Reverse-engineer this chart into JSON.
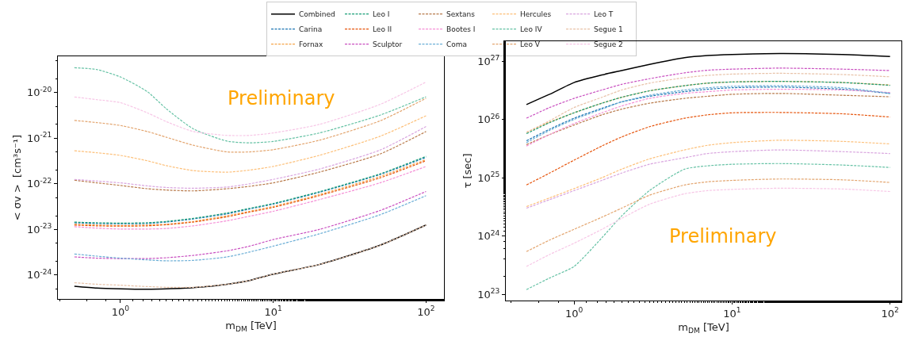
{
  "chart_data": [
    {
      "type": "line",
      "xlabel": "m$_{DM}$ [TeV]",
      "ylabel": "< σv >  [cm³s⁻¹]",
      "annotations": [
        "Preliminary"
      ],
      "log": "xy",
      "grid": false,
      "legend": "top",
      "line_style": "dashed",
      "marker": "none",
      "xlim": [
        0.39,
        131
      ],
      "ylim": [
        3e-25,
        6.2e-20
      ],
      "xticks": [
        {
          "value": 1,
          "label": "10$^{0}$"
        },
        {
          "value": 10,
          "label": "10$^{1}$"
        },
        {
          "value": 100,
          "label": "10$^{2}$"
        }
      ],
      "yticks": [
        {
          "value": 1e-24,
          "label": "10$^{-24}$"
        },
        {
          "value": 1e-23,
          "label": "10$^{-23}$"
        },
        {
          "value": 1e-22,
          "label": "10$^{-22}$"
        },
        {
          "value": 1e-21,
          "label": "10$^{-21}$"
        },
        {
          "value": 1e-20,
          "label": "10$^{-20}$"
        }
      ],
      "x": [
        0.5,
        0.7,
        1,
        1.5,
        2,
        3,
        5,
        7,
        10,
        20,
        50,
        100
      ],
      "series": [
        {
          "name": "Combined",
          "color": "#000000",
          "line_style": "solid",
          "values": [
            5.7e-25,
            5.2e-25,
            5e-25,
            4.9e-25,
            5e-25,
            5.3e-25,
            6.3e-25,
            7.6e-25,
            1.05e-24,
            1.7e-24,
            4.5e-24,
            1.25e-23
          ]
        },
        {
          "name": "Carina",
          "color": "#1f77b4",
          "values": [
            1.4e-23,
            1.35e-23,
            1.33e-23,
            1.35e-23,
            1.45e-23,
            1.7e-23,
            2.2e-23,
            2.8e-23,
            3.6e-23,
            6.5e-23,
            1.6e-22,
            3.8e-22
          ]
        },
        {
          "name": "Fornax",
          "color": "#f5a54a",
          "values": [
            1.3e-23,
            1.25e-23,
            1.22e-23,
            1.25e-23,
            1.3e-23,
            1.5e-23,
            2e-23,
            2.5e-23,
            3.2e-23,
            5.8e-23,
            1.45e-22,
            3.4e-22
          ]
        },
        {
          "name": "Leo I",
          "color": "#1a9e77",
          "values": [
            1.45e-23,
            1.4e-23,
            1.38e-23,
            1.4e-23,
            1.5e-23,
            1.75e-23,
            2.3e-23,
            2.9e-23,
            3.7e-23,
            6.7e-23,
            1.65e-22,
            4e-22
          ]
        },
        {
          "name": "Leo II",
          "color": "#e6550d",
          "values": [
            1.25e-23,
            1.2e-23,
            1.18e-23,
            1.2e-23,
            1.27e-23,
            1.45e-23,
            1.9e-23,
            2.4e-23,
            3.05e-23,
            5.5e-23,
            1.35e-22,
            3.2e-22
          ]
        },
        {
          "name": "Sculptor",
          "color": "#c94fc0",
          "values": [
            2.5e-24,
            2.35e-24,
            2.3e-24,
            2.3e-24,
            2.4e-24,
            2.7e-24,
            3.4e-24,
            4.3e-24,
            6e-24,
            1e-23,
            2.6e-23,
            6.8e-23
          ]
        },
        {
          "name": "Sextans",
          "color": "#b87a4b",
          "values": [
            1.2e-22,
            1.05e-22,
            9.2e-23,
            7.8e-23,
            7.3e-23,
            7e-23,
            7.8e-23,
            8.8e-23,
            1.05e-22,
            1.8e-22,
            4.5e-22,
            1.4e-21
          ]
        },
        {
          "name": "Bootes I",
          "color": "#f58fd6",
          "values": [
            1.15e-23,
            1.07e-23,
            1.02e-23,
            1.02e-23,
            1.05e-23,
            1.2e-23,
            1.55e-23,
            1.95e-23,
            2.5e-23,
            4.5e-23,
            1.05e-22,
            2.4e-22
          ]
        },
        {
          "name": "Coma",
          "color": "#6baed6",
          "values": [
            2.9e-24,
            2.6e-24,
            2.35e-24,
            2.15e-24,
            2.05e-24,
            2.1e-24,
            2.5e-24,
            3.2e-24,
            4.3e-24,
            8e-24,
            2.1e-23,
            5.5e-23
          ]
        },
        {
          "name": "Hercules",
          "color": "#fdc07a",
          "values": [
            5.3e-22,
            4.8e-22,
            4.2e-22,
            3.2e-22,
            2.5e-22,
            1.95e-22,
            1.8e-22,
            2e-22,
            2.4e-22,
            4.2e-22,
            1.1e-21,
            3.1e-21
          ]
        },
        {
          "name": "Leo IV",
          "color": "#66c2a5",
          "values": [
            3.5e-20,
            3.2e-20,
            2.2e-20,
            1.05e-20,
            4.4e-21,
            1.6e-21,
            8.6e-22,
            7.9e-22,
            8.5e-22,
            1.3e-21,
            3.2e-21,
            8.1e-21
          ]
        },
        {
          "name": "Leo V",
          "color": "#e3a56f",
          "values": [
            2.45e-21,
            2.2e-21,
            1.9e-21,
            1.4e-21,
            1.05e-21,
            7e-22,
            5e-22,
            5e-22,
            5.6e-22,
            9e-22,
            2.4e-21,
            7.5e-21
          ]
        },
        {
          "name": "Leo T",
          "color": "#d9a5df",
          "values": [
            1.25e-22,
            1.15e-22,
            1.05e-22,
            9e-23,
            8.3e-23,
            8e-23,
            8.5e-23,
            1e-22,
            1.25e-22,
            2.1e-22,
            5.5e-22,
            1.8e-21
          ]
        },
        {
          "name": "Segue 1",
          "color": "#e8c2a8",
          "values": [
            6.8e-25,
            6.3e-25,
            6e-25,
            5.6e-25,
            5.4e-25,
            5.4e-25,
            6.3e-25,
            7.6e-25,
            1.05e-24,
            1.7e-24,
            4.5e-24,
            1.25e-23
          ]
        },
        {
          "name": "Segue 2",
          "color": "#f7c6e6",
          "values": [
            8e-21,
            7e-21,
            6e-21,
            3.6e-21,
            2.3e-21,
            1.4e-21,
            1.15e-21,
            1.15e-21,
            1.3e-21,
            2e-21,
            5.5e-21,
            1.7e-20
          ]
        }
      ]
    },
    {
      "type": "line",
      "xlabel": "m$_{DM}$ [TeV]",
      "ylabel": "τ [sec]",
      "annotations": [
        "Preliminary"
      ],
      "log": "xy",
      "grid": false,
      "line_style": "dashed",
      "marker": "none",
      "xlim": [
        0.37,
        118
      ],
      "ylim": [
        7.8e+22,
        2.2e+27
      ],
      "xticks": [
        {
          "value": 1,
          "label": "10$^{0}$"
        },
        {
          "value": 10,
          "label": "10$^{1}$"
        },
        {
          "value": 100,
          "label": "10$^{2}$"
        }
      ],
      "yticks": [
        {
          "value": 1e+23,
          "label": "10$^{23}$"
        },
        {
          "value": 1e+24,
          "label": "10$^{24}$"
        },
        {
          "value": 1e+25,
          "label": "10$^{25}$"
        },
        {
          "value": 1e+26,
          "label": "10$^{26}$"
        },
        {
          "value": 1e+27,
          "label": "10$^{27}$"
        }
      ],
      "x": [
        0.5,
        0.7,
        1,
        1.5,
        2,
        3,
        5,
        7,
        10,
        20,
        50,
        100
      ],
      "series": [
        {
          "color": "#000000",
          "line_style": "solid",
          "values": [
            1.8e+26,
            2.7e+26,
            4.3e+26,
            5.8e+26,
            6.9e+26,
            8.8e+26,
            1.15e+27,
            1.25e+27,
            1.3e+27,
            1.35e+27,
            1.3e+27,
            1.2e+27
          ]
        },
        {
          "color": "#1f77b4",
          "values": [
            4.3e+25,
            6.8e+25,
            1.05e+26,
            1.55e+26,
            2e+26,
            2.5e+26,
            3e+26,
            3.3e+26,
            3.5e+26,
            3.6e+26,
            3.3e+26,
            2.8e+26
          ]
        },
        {
          "color": "#f5a54a",
          "values": [
            6e+25,
            9e+25,
            1.3e+26,
            1.9e+26,
            2.4e+26,
            3.1e+26,
            3.8e+26,
            4.2e+26,
            4.4e+26,
            4.5e+26,
            4.3e+26,
            3.9e+26
          ]
        },
        {
          "color": "#1a9e77",
          "values": [
            5.7e+25,
            8.8e+25,
            1.3e+26,
            1.9e+26,
            2.4e+26,
            3.1e+26,
            3.8e+26,
            4.2e+26,
            4.4e+26,
            4.5e+26,
            4.3e+26,
            3.85e+26
          ]
        },
        {
          "color": "#e6550d",
          "values": [
            7.5e+24,
            1.2e+25,
            2e+25,
            3.5e+25,
            5e+25,
            7.5e+25,
            1.05e+26,
            1.2e+26,
            1.3e+26,
            1.32e+26,
            1.25e+26,
            1.1e+26
          ]
        },
        {
          "color": "#c94fc0",
          "values": [
            1.05e+26,
            1.6e+26,
            2.3e+26,
            3.2e+26,
            4e+26,
            5e+26,
            6.3e+26,
            7e+26,
            7.3e+26,
            7.6e+26,
            7.3e+26,
            6.9e+26
          ]
        },
        {
          "color": "#b87a4b",
          "values": [
            3.7e+25,
            5.5e+25,
            8e+25,
            1.2e+26,
            1.5e+26,
            1.9e+26,
            2.3e+26,
            2.5e+26,
            2.7e+26,
            2.8e+26,
            2.6e+26,
            2.45e+26
          ]
        },
        {
          "color": "#f58fd6",
          "values": [
            3.5e+25,
            5.5e+25,
            8.5e+25,
            1.3e+26,
            1.7e+26,
            2.3e+26,
            2.8e+26,
            3e+26,
            3.2e+26,
            3.3e+26,
            3.2e+26,
            2.9e+26
          ]
        },
        {
          "color": "#6baed6",
          "values": [
            4e+25,
            6.5e+25,
            1e+26,
            1.5e+26,
            2e+26,
            2.6e+26,
            3.2e+26,
            3.5e+26,
            3.7e+26,
            3.8e+26,
            3.5e+26,
            2.8e+26
          ]
        },
        {
          "color": "#fdc07a",
          "values": [
            3.2e+24,
            4.5e+24,
            6.5e+24,
            1e+25,
            1.4e+25,
            2.1e+25,
            3e+25,
            3.6e+25,
            4e+25,
            4.4e+25,
            4.2e+25,
            3.8e+25
          ]
        },
        {
          "color": "#66c2a5",
          "values": [
            1.2e+23,
            1.9e+23,
            3e+23,
            9.3e+23,
            2.2e+24,
            6e+24,
            1.4e+25,
            1.6e+25,
            1.7e+25,
            1.75e+25,
            1.65e+25,
            1.5e+25
          ]
        },
        {
          "color": "#e3a56f",
          "values": [
            5.4e+23,
            8.5e+23,
            1.3e+24,
            2.1e+24,
            3e+24,
            5e+24,
            7.5e+24,
            8.5e+24,
            9e+24,
            9.5e+24,
            9.2e+24,
            8.3e+24
          ]
        },
        {
          "color": "#d9a5df",
          "values": [
            3e+24,
            4.2e+24,
            6e+24,
            9e+24,
            1.2e+25,
            1.7e+25,
            2.2e+25,
            2.6e+25,
            2.8e+25,
            3e+25,
            2.8e+25,
            2.6e+25
          ]
        },
        {
          "color": "#e8c2a8",
          "values": [
            6e+25,
            9.5e+25,
            1.6e+26,
            2.4e+26,
            3.2e+26,
            4.2e+26,
            5.2e+26,
            5.7e+26,
            6e+26,
            6.2e+26,
            5.9e+26,
            5.4e+26
          ]
        },
        {
          "color": "#f7c6e6",
          "values": [
            3e+23,
            4.8e+23,
            7.5e+23,
            1.3e+24,
            2e+24,
            3.5e+24,
            5.3e+24,
            6e+24,
            6.3e+24,
            6.6e+24,
            6.4e+24,
            5.8e+24
          ]
        }
      ]
    }
  ]
}
